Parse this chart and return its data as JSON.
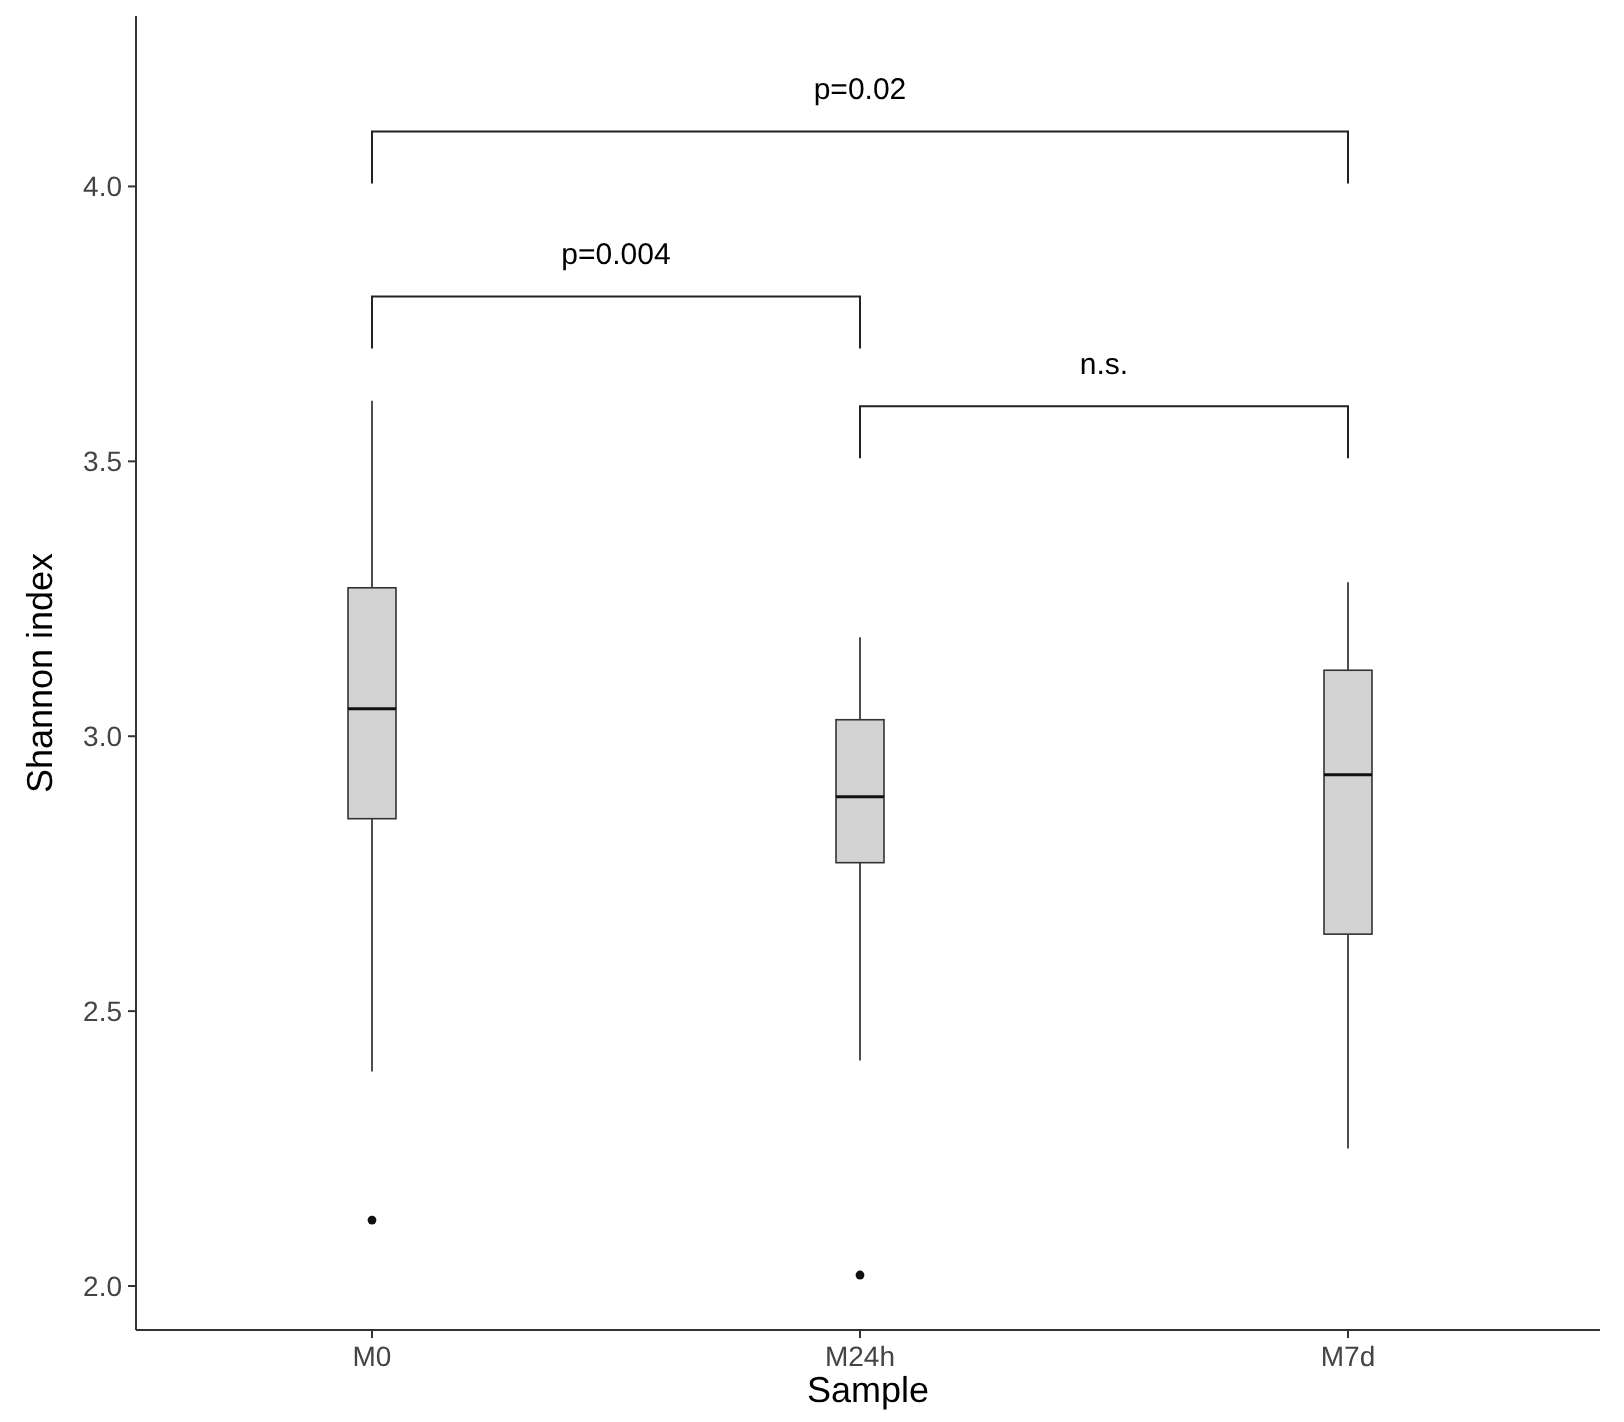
{
  "chart_data": {
    "type": "box",
    "xlabel": "Sample",
    "ylabel": "Shannon index",
    "categories": [
      "M0",
      "M24h",
      "M7d"
    ],
    "ylim": [
      1.92,
      4.31
    ],
    "yticks": [
      {
        "value": 2,
        "label": "2.0"
      },
      2.5,
      {
        "value": 3,
        "label": "3.0"
      },
      3.5,
      {
        "value": 4,
        "label": "4.0"
      }
    ],
    "boxes": [
      {
        "low": 2.39,
        "q1": 2.85,
        "median": 3.05,
        "q3": 3.27,
        "high": 3.61,
        "outliers": [
          2.12
        ]
      },
      {
        "low": 2.41,
        "q1": 2.77,
        "median": 2.89,
        "q3": 3.03,
        "high": 3.18,
        "outliers": [
          2.02
        ]
      },
      {
        "low": 2.25,
        "q1": 2.64,
        "median": 2.93,
        "q3": 3.12,
        "high": 3.28
      }
    ],
    "color": "#d3d3d3",
    "annotations": [
      "p=0.02",
      "p=0.004",
      "n.s."
    ],
    "grid": false
  }
}
